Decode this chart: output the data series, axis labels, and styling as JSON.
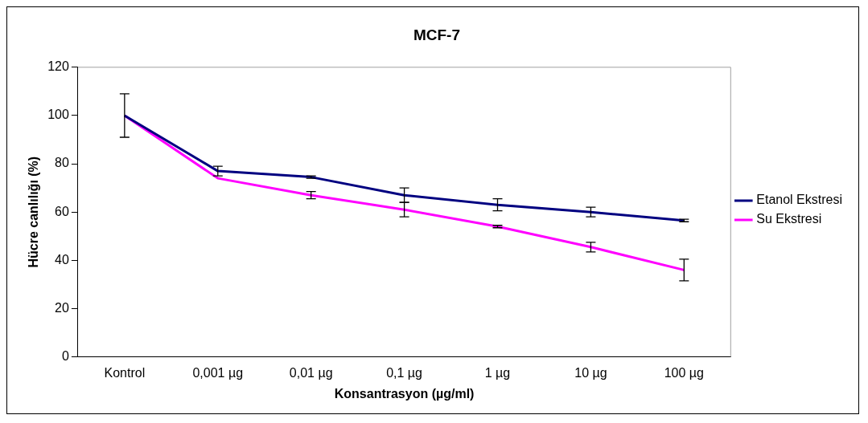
{
  "chart_data": {
    "type": "line",
    "title": "MCF-7",
    "xlabel": "Konsantrasyon (µg/ml)",
    "ylabel": "Hücre canlılığı (%)",
    "categories": [
      "Kontrol",
      "0,001 µg",
      "0,01 µg",
      "0,1 µg",
      "1 µg",
      "10 µg",
      "100 µg"
    ],
    "series": [
      {
        "name": "Etanol Ekstresi",
        "color": "#000080",
        "values": [
          100,
          77,
          74.5,
          67,
          63,
          60,
          56.5
        ],
        "errors": [
          9,
          2,
          0.5,
          3,
          2.5,
          2,
          0.5
        ]
      },
      {
        "name": "Su Ekstresi",
        "color": "#ff00ff",
        "values": [
          100,
          74,
          67,
          61,
          54,
          45.5,
          36
        ],
        "errors": [
          null,
          null,
          1.5,
          3,
          0.5,
          2,
          4.5
        ]
      }
    ],
    "ylim": [
      0,
      120
    ],
    "yticks": [
      0,
      20,
      40,
      60,
      80,
      100,
      120
    ],
    "grid": false,
    "legend": "right",
    "line_style": "solid"
  }
}
